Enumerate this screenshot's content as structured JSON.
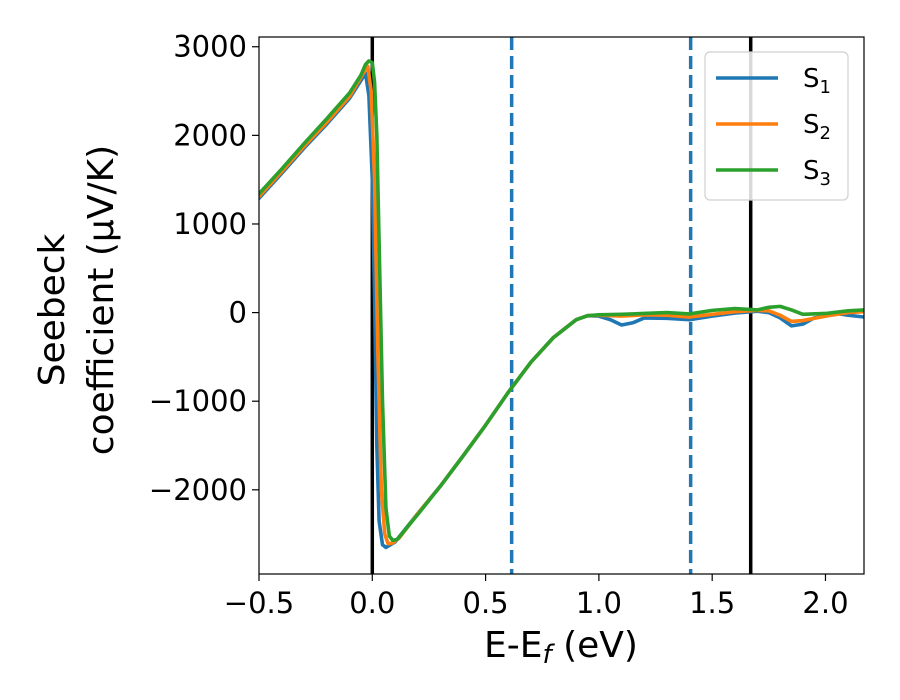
{
  "chart_data": {
    "type": "line",
    "xlabel": {
      "main": "E-E",
      "sub": "f",
      "unit": " (eV)"
    },
    "ylabel": {
      "line1": "Seebeck",
      "line2": "coefficient  (μV/K)"
    },
    "xlim": [
      -0.5,
      2.17
    ],
    "ylim": [
      -2950,
      3110
    ],
    "xticks": [
      {
        "value": -0.5,
        "label": "−0.5"
      },
      {
        "value": 0.0,
        "label": "0.0"
      },
      {
        "value": 0.5,
        "label": "0.5"
      },
      {
        "value": 1.0,
        "label": "1.0"
      },
      {
        "value": 1.5,
        "label": "1.5"
      },
      {
        "value": 2.0,
        "label": "2.0"
      }
    ],
    "yticks": [
      {
        "value": -2000,
        "label": "−2000"
      },
      {
        "value": -1000,
        "label": "−1000"
      },
      {
        "value": 0,
        "label": "0"
      },
      {
        "value": 1000,
        "label": "1000"
      },
      {
        "value": 2000,
        "label": "2000"
      },
      {
        "value": 3000,
        "label": "3000"
      }
    ],
    "grid": false,
    "legend_position": "top-right",
    "vlines": [
      {
        "x": 0.0,
        "style": "solid",
        "color": "#000000"
      },
      {
        "x": 0.615,
        "style": "dashed",
        "color": "#1f77b4"
      },
      {
        "x": 1.405,
        "style": "dashed",
        "color": "#1f77b4"
      },
      {
        "x": 1.67,
        "style": "solid",
        "color": "#000000"
      }
    ],
    "series": [
      {
        "name": "S",
        "sub": "1",
        "color": "#1f77b4",
        "points": [
          [
            -0.5,
            1290
          ],
          [
            -0.4,
            1570
          ],
          [
            -0.3,
            1860
          ],
          [
            -0.2,
            2130
          ],
          [
            -0.1,
            2420
          ],
          [
            -0.05,
            2620
          ],
          [
            -0.03,
            2700
          ],
          [
            -0.015,
            2450
          ],
          [
            0.0,
            1500
          ],
          [
            0.01,
            200
          ],
          [
            0.02,
            -1500
          ],
          [
            0.03,
            -2350
          ],
          [
            0.045,
            -2620
          ],
          [
            0.06,
            -2650
          ],
          [
            0.1,
            -2590
          ],
          [
            0.2,
            -2270
          ],
          [
            0.3,
            -1960
          ],
          [
            0.4,
            -1620
          ],
          [
            0.5,
            -1270
          ],
          [
            0.6,
            -900
          ],
          [
            0.7,
            -560
          ],
          [
            0.8,
            -280
          ],
          [
            0.9,
            -80
          ],
          [
            0.95,
            -35
          ],
          [
            1.0,
            -40
          ],
          [
            1.05,
            -80
          ],
          [
            1.1,
            -140
          ],
          [
            1.15,
            -115
          ],
          [
            1.2,
            -60
          ],
          [
            1.3,
            -65
          ],
          [
            1.4,
            -80
          ],
          [
            1.5,
            -40
          ],
          [
            1.6,
            -5
          ],
          [
            1.7,
            15
          ],
          [
            1.75,
            0
          ],
          [
            1.8,
            -60
          ],
          [
            1.85,
            -150
          ],
          [
            1.9,
            -130
          ],
          [
            1.95,
            -60
          ],
          [
            2.0,
            -40
          ],
          [
            2.05,
            -10
          ],
          [
            2.1,
            -30
          ],
          [
            2.17,
            -50
          ]
        ]
      },
      {
        "name": "S",
        "sub": "2",
        "color": "#ff7f0e",
        "points": [
          [
            -0.5,
            1310
          ],
          [
            -0.4,
            1590
          ],
          [
            -0.3,
            1880
          ],
          [
            -0.2,
            2150
          ],
          [
            -0.1,
            2440
          ],
          [
            -0.04,
            2700
          ],
          [
            -0.02,
            2780
          ],
          [
            -0.005,
            2500
          ],
          [
            0.01,
            1500
          ],
          [
            0.025,
            -500
          ],
          [
            0.04,
            -2000
          ],
          [
            0.055,
            -2500
          ],
          [
            0.07,
            -2610
          ],
          [
            0.09,
            -2600
          ],
          [
            0.12,
            -2540
          ],
          [
            0.2,
            -2270
          ],
          [
            0.3,
            -1960
          ],
          [
            0.4,
            -1620
          ],
          [
            0.5,
            -1270
          ],
          [
            0.6,
            -900
          ],
          [
            0.7,
            -560
          ],
          [
            0.8,
            -280
          ],
          [
            0.9,
            -80
          ],
          [
            0.95,
            -35
          ],
          [
            1.0,
            -30
          ],
          [
            1.1,
            -40
          ],
          [
            1.2,
            -25
          ],
          [
            1.3,
            -30
          ],
          [
            1.4,
            -50
          ],
          [
            1.5,
            -20
          ],
          [
            1.6,
            10
          ],
          [
            1.7,
            25
          ],
          [
            1.75,
            20
          ],
          [
            1.8,
            -30
          ],
          [
            1.85,
            -100
          ],
          [
            1.9,
            -90
          ],
          [
            2.0,
            -40
          ],
          [
            2.1,
            0
          ],
          [
            2.17,
            10
          ]
        ]
      },
      {
        "name": "S",
        "sub": "3",
        "color": "#2ca02c",
        "points": [
          [
            -0.5,
            1340
          ],
          [
            -0.4,
            1620
          ],
          [
            -0.3,
            1910
          ],
          [
            -0.2,
            2190
          ],
          [
            -0.1,
            2480
          ],
          [
            -0.05,
            2680
          ],
          [
            -0.03,
            2800
          ],
          [
            -0.015,
            2840
          ],
          [
            0.0,
            2820
          ],
          [
            0.01,
            2600
          ],
          [
            0.02,
            2000
          ],
          [
            0.03,
            800
          ],
          [
            0.045,
            -1000
          ],
          [
            0.06,
            -2200
          ],
          [
            0.075,
            -2520
          ],
          [
            0.09,
            -2570
          ],
          [
            0.11,
            -2560
          ],
          [
            0.2,
            -2280
          ],
          [
            0.3,
            -1960
          ],
          [
            0.4,
            -1620
          ],
          [
            0.5,
            -1270
          ],
          [
            0.6,
            -900
          ],
          [
            0.7,
            -560
          ],
          [
            0.8,
            -280
          ],
          [
            0.9,
            -80
          ],
          [
            0.95,
            -35
          ],
          [
            1.0,
            -25
          ],
          [
            1.1,
            -20
          ],
          [
            1.2,
            -10
          ],
          [
            1.3,
            0
          ],
          [
            1.4,
            -15
          ],
          [
            1.5,
            25
          ],
          [
            1.6,
            45
          ],
          [
            1.7,
            30
          ],
          [
            1.75,
            60
          ],
          [
            1.8,
            70
          ],
          [
            1.85,
            30
          ],
          [
            1.9,
            -20
          ],
          [
            2.0,
            -10
          ],
          [
            2.1,
            20
          ],
          [
            2.17,
            30
          ]
        ]
      }
    ]
  }
}
